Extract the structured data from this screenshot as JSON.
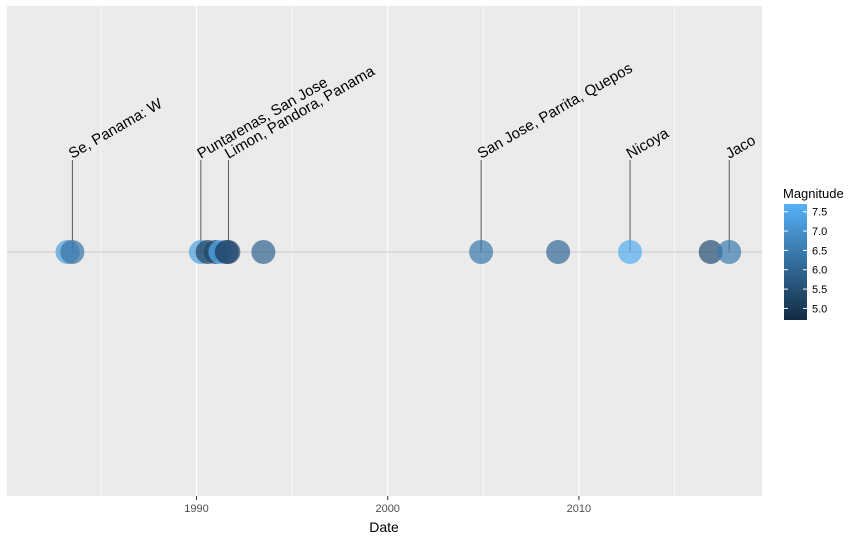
{
  "chart_data": {
    "type": "scatter",
    "title": "",
    "xlabel": "Date",
    "ylabel": "",
    "xlim": [
      "1980-02-01",
      "2019-08-01"
    ],
    "x_ticks": [
      1990,
      2000,
      2010
    ],
    "x_tick_labels": [
      "1990",
      "2000",
      "2010"
    ],
    "grid": true,
    "legend": {
      "title": "Magnitude",
      "position": "right",
      "type": "colorbar",
      "breaks": [
        "5.0",
        "5.5",
        "6.0",
        "6.5",
        "7.0",
        "7.5"
      ],
      "range": [
        4.7,
        7.7
      ],
      "low_color": "#132b43",
      "high_color": "#56b1f7"
    },
    "points": [
      {
        "date": "1983-04-03",
        "magnitude": 7.3
      },
      {
        "date": "1983-07-03",
        "magnitude": 6.3,
        "label": "Se, Panama: W"
      },
      {
        "date": "1990-03-25",
        "magnitude": 7.3,
        "label": "Puntarenas, San Jose"
      },
      {
        "date": "1990-08-01",
        "magnitude": 5.2
      },
      {
        "date": "1991-01-01",
        "magnitude": 5.3
      },
      {
        "date": "1991-04-01",
        "magnitude": 7.6
      },
      {
        "date": "1991-08-01",
        "magnitude": 5.0
      },
      {
        "date": "1991-09-01",
        "magnitude": 5.5,
        "label": "Limon, Pandora, Panama"
      },
      {
        "date": "1993-07-01",
        "magnitude": 6.0
      },
      {
        "date": "2004-11-20",
        "magnitude": 6.4,
        "label": "San Jose, Parrita, Quepos"
      },
      {
        "date": "2008-12-01",
        "magnitude": 6.1
      },
      {
        "date": "2012-09-05",
        "magnitude": 7.6,
        "label": "Nicoya"
      },
      {
        "date": "2016-11-24",
        "magnitude": 5.5
      },
      {
        "date": "2017-11-13",
        "magnitude": 6.5,
        "label": "Jaco"
      }
    ]
  }
}
